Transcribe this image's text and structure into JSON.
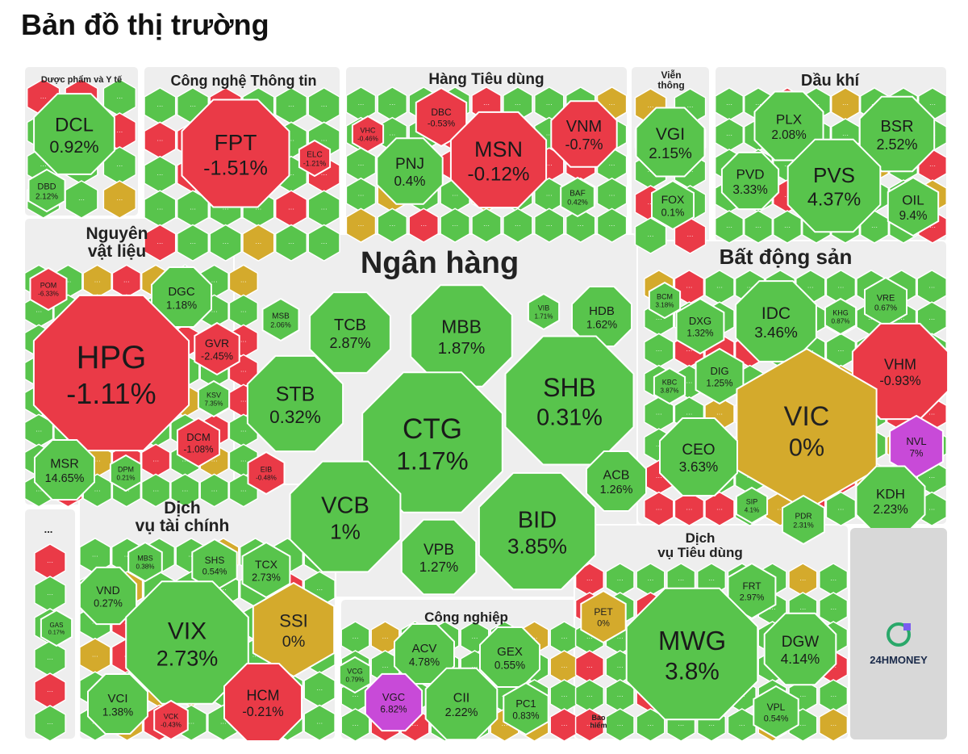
{
  "page": {
    "title": "Bản đồ thị trường"
  },
  "colors": {
    "up": "#58c44c",
    "down": "#ea3a47",
    "flat": "#d4aa2c",
    "ceiling": "#c84ad8",
    "floor": "#2ad0c2",
    "sector_bg": "#eeeeee",
    "logo_bg": "#d8d8d8",
    "logo_icon": "#2aa86a"
  },
  "logo": {
    "text": "24HMONEY",
    "icon": "money-logo-icon"
  },
  "chart_data": {
    "type": "treemap",
    "title": "Bản đồ thị trường",
    "sectors": [
      {
        "name": "Dược phẩm và Y tế",
        "stocks": [
          {
            "ticker": "DCL",
            "change": "0.92%",
            "status": "up"
          },
          {
            "ticker": "DBD",
            "change": "2.12%",
            "status": "up"
          }
        ]
      },
      {
        "name": "Công nghệ Thông tin",
        "stocks": [
          {
            "ticker": "FPT",
            "change": "-1.51%",
            "status": "down"
          },
          {
            "ticker": "ELC",
            "change": "-1.21%",
            "status": "down"
          }
        ]
      },
      {
        "name": "Hàng Tiêu dùng",
        "stocks": [
          {
            "ticker": "DBC",
            "change": "-0.53%",
            "status": "down"
          },
          {
            "ticker": "VHC",
            "change": "-0.46%",
            "status": "down"
          },
          {
            "ticker": "PNJ",
            "change": "0.4%",
            "status": "up"
          },
          {
            "ticker": "MSN",
            "change": "-0.12%",
            "status": "down"
          },
          {
            "ticker": "VNM",
            "change": "-0.7%",
            "status": "down"
          },
          {
            "ticker": "BAF",
            "change": "0.42%",
            "status": "up"
          }
        ]
      },
      {
        "name": "Viễn thông",
        "stocks": [
          {
            "ticker": "VGI",
            "change": "2.15%",
            "status": "up"
          },
          {
            "ticker": "FOX",
            "change": "0.1%",
            "status": "up"
          }
        ]
      },
      {
        "name": "Dầu khí",
        "stocks": [
          {
            "ticker": "PLX",
            "change": "2.08%",
            "status": "up"
          },
          {
            "ticker": "BSR",
            "change": "2.52%",
            "status": "up"
          },
          {
            "ticker": "PVD",
            "change": "3.33%",
            "status": "up"
          },
          {
            "ticker": "PVS",
            "change": "4.37%",
            "status": "up"
          },
          {
            "ticker": "OIL",
            "change": "9.4%",
            "status": "up"
          }
        ]
      },
      {
        "name": "Nguyên vật liệu",
        "stocks": [
          {
            "ticker": "POM",
            "change": "-6.33%",
            "status": "down"
          },
          {
            "ticker": "DGC",
            "change": "1.18%",
            "status": "up"
          },
          {
            "ticker": "HPG",
            "change": "-1.11%",
            "status": "down"
          },
          {
            "ticker": "GVR",
            "change": "-2.45%",
            "status": "down"
          },
          {
            "ticker": "KSV",
            "change": "7.35%",
            "status": "up"
          },
          {
            "ticker": "DCM",
            "change": "-1.08%",
            "status": "down"
          },
          {
            "ticker": "MSR",
            "change": "14.65%",
            "status": "up"
          },
          {
            "ticker": "DPM",
            "change": "0.21%",
            "status": "up"
          }
        ]
      },
      {
        "name": "Ngân hàng",
        "stocks": [
          {
            "ticker": "MSB",
            "change": "2.06%",
            "status": "up"
          },
          {
            "ticker": "TCB",
            "change": "2.87%",
            "status": "up"
          },
          {
            "ticker": "MBB",
            "change": "1.87%",
            "status": "up"
          },
          {
            "ticker": "VIB",
            "change": "1.71%",
            "status": "up"
          },
          {
            "ticker": "HDB",
            "change": "1.62%",
            "status": "up"
          },
          {
            "ticker": "STB",
            "change": "0.32%",
            "status": "up"
          },
          {
            "ticker": "CTG",
            "change": "1.17%",
            "status": "up"
          },
          {
            "ticker": "SHB",
            "change": "0.31%",
            "status": "up"
          },
          {
            "ticker": "EIB",
            "change": "-0.48%",
            "status": "down"
          },
          {
            "ticker": "VCB",
            "change": "1%",
            "status": "up"
          },
          {
            "ticker": "BID",
            "change": "3.85%",
            "status": "up"
          },
          {
            "ticker": "ACB",
            "change": "1.26%",
            "status": "up"
          },
          {
            "ticker": "VPB",
            "change": "1.27%",
            "status": "up"
          }
        ]
      },
      {
        "name": "Bất động sản",
        "stocks": [
          {
            "ticker": "BCM",
            "change": "3.18%",
            "status": "up"
          },
          {
            "ticker": "DXG",
            "change": "1.32%",
            "status": "up"
          },
          {
            "ticker": "IDC",
            "change": "3.46%",
            "status": "up"
          },
          {
            "ticker": "KHG",
            "change": "0.87%",
            "status": "up"
          },
          {
            "ticker": "VRE",
            "change": "0.67%",
            "status": "up"
          },
          {
            "ticker": "DIG",
            "change": "1.25%",
            "status": "up"
          },
          {
            "ticker": "KBC",
            "change": "3.87%",
            "status": "up"
          },
          {
            "ticker": "VHM",
            "change": "-0.93%",
            "status": "down"
          },
          {
            "ticker": "VIC",
            "change": "0%",
            "status": "flat"
          },
          {
            "ticker": "CEO",
            "change": "3.63%",
            "status": "up"
          },
          {
            "ticker": "NVL",
            "change": "7%",
            "status": "ceiling"
          },
          {
            "ticker": "SIP",
            "change": "4.1%",
            "status": "up"
          },
          {
            "ticker": "PDR",
            "change": "2.31%",
            "status": "up"
          },
          {
            "ticker": "KDH",
            "change": "2.23%",
            "status": "up"
          }
        ]
      },
      {
        "name": "...",
        "stocks": [
          {
            "ticker": "GAS",
            "change": "0.17%",
            "status": "up"
          }
        ]
      },
      {
        "name": "Dịch vụ tài chính",
        "stocks": [
          {
            "ticker": "MBS",
            "change": "0.38%",
            "status": "up"
          },
          {
            "ticker": "SHS",
            "change": "0.54%",
            "status": "up"
          },
          {
            "ticker": "TCX",
            "change": "2.73%",
            "status": "up"
          },
          {
            "ticker": "VND",
            "change": "0.27%",
            "status": "up"
          },
          {
            "ticker": "VIX",
            "change": "2.73%",
            "status": "up"
          },
          {
            "ticker": "SSI",
            "change": "0%",
            "status": "flat"
          },
          {
            "ticker": "VCI",
            "change": "1.38%",
            "status": "up"
          },
          {
            "ticker": "VCK",
            "change": "-0.43%",
            "status": "down"
          },
          {
            "ticker": "HCM",
            "change": "-0.21%",
            "status": "down"
          }
        ]
      },
      {
        "name": "Công nghiệp",
        "stocks": [
          {
            "ticker": "ACV",
            "change": "4.78%",
            "status": "up"
          },
          {
            "ticker": "GEX",
            "change": "0.55%",
            "status": "up"
          },
          {
            "ticker": "VCG",
            "change": "0.79%",
            "status": "up"
          },
          {
            "ticker": "VGC",
            "change": "6.82%",
            "status": "ceiling"
          },
          {
            "ticker": "CII",
            "change": "2.22%",
            "status": "up"
          },
          {
            "ticker": "PC1",
            "change": "0.83%",
            "status": "up"
          }
        ]
      },
      {
        "name": "Bảo hiểm",
        "stocks": []
      },
      {
        "name": "Dịch vụ Tiêu dùng",
        "stocks": [
          {
            "ticker": "PET",
            "change": "0%",
            "status": "flat"
          },
          {
            "ticker": "FRT",
            "change": "2.97%",
            "status": "up"
          },
          {
            "ticker": "MWG",
            "change": "3.8%",
            "status": "up"
          },
          {
            "ticker": "DGW",
            "change": "4.14%",
            "status": "up"
          },
          {
            "ticker": "VPL",
            "change": "0.54%",
            "status": "up"
          }
        ]
      }
    ]
  }
}
